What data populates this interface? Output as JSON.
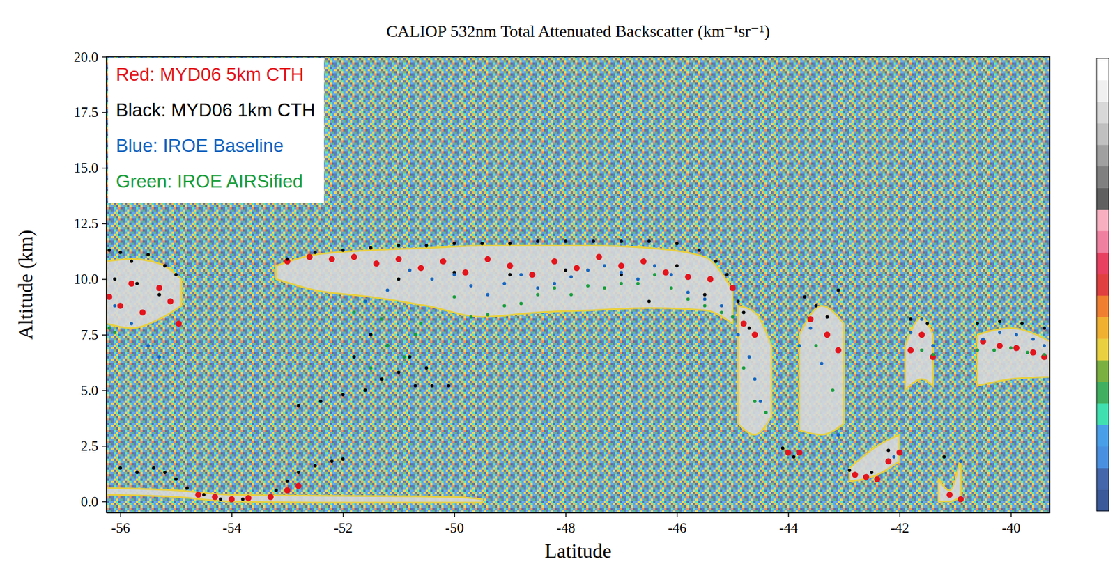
{
  "chart_data": {
    "type": "scatter",
    "title": "CALIOP 532nm Total Attenuated Backscatter (km⁻¹sr⁻¹)",
    "x_label": "Latitude",
    "y_label": "Altitude (km)",
    "xlim": [
      -56.25,
      -39.3
    ],
    "xticks": [
      -56,
      -54,
      -52,
      -50,
      -48,
      -46,
      -44,
      -42,
      -40
    ],
    "ylim": [
      -0.5,
      20
    ],
    "yticks": [
      {
        "value": 0,
        "label": "0.0"
      },
      2.5,
      {
        "value": 5,
        "label": "5.0"
      },
      7.5,
      {
        "value": 10,
        "label": "10.0"
      },
      12.5,
      {
        "value": 15,
        "label": "15.0"
      },
      17.5,
      {
        "value": 20,
        "label": "20.0"
      }
    ],
    "grid": false,
    "legend": "upper left",
    "series": [
      {
        "name": "Red: MYD06 5km CTH",
        "color": "#e3141c",
        "marker": "circle",
        "x": [
          -56.2,
          -56.0,
          -55.8,
          -55.6,
          -55.3,
          -55.1,
          -54.95,
          -54.6,
          -54.3,
          -54.0,
          -53.7,
          -53.3,
          -53.0,
          -52.8,
          -53.0,
          -52.6,
          -52.2,
          -51.8,
          -51.4,
          -51.0,
          -50.6,
          -50.2,
          -49.8,
          -49.4,
          -49.0,
          -48.6,
          -48.2,
          -47.8,
          -47.4,
          -47.0,
          -46.6,
          -46.2,
          -45.8,
          -45.4,
          -45.0,
          -44.8,
          -44.6,
          -43.6,
          -43.3,
          -43.1,
          -44.0,
          -43.8,
          -42.8,
          -42.6,
          -42.4,
          -42.2,
          -42.0,
          -41.8,
          -41.6,
          -41.4,
          -41.1,
          -40.9,
          -40.5,
          -40.2,
          -39.9,
          -39.6,
          -39.4
        ],
        "values": [
          9.2,
          8.8,
          9.8,
          8.5,
          9.6,
          9.0,
          8.0,
          0.3,
          0.2,
          0.1,
          0.15,
          0.2,
          0.5,
          0.7,
          10.8,
          11.0,
          10.9,
          11.0,
          10.7,
          10.9,
          10.5,
          10.8,
          10.3,
          10.9,
          10.6,
          10.2,
          10.8,
          10.5,
          11.0,
          10.6,
          10.8,
          10.3,
          10.1,
          10.0,
          9.6,
          8.0,
          7.5,
          8.2,
          7.5,
          6.8,
          2.2,
          2.2,
          1.2,
          1.1,
          1.0,
          1.8,
          2.2,
          6.8,
          7.5,
          6.5,
          0.3,
          0.1,
          7.2,
          7.0,
          6.9,
          6.7,
          6.5
        ]
      },
      {
        "name": "Black: MYD06 1km CTH",
        "color": "#000000",
        "marker": "dot",
        "x": [
          -56.2,
          -56.0,
          -55.8,
          -55.5,
          -55.2,
          -55.0,
          -56.1,
          -55.7,
          -55.3,
          -56.0,
          -55.7,
          -55.4,
          -55.2,
          -55.0,
          -54.8,
          -54.5,
          -54.2,
          -53.8,
          -53.2,
          -53.0,
          -52.8,
          -52.5,
          -52.2,
          -52.0,
          -52.8,
          -52.4,
          -52.0,
          -51.6,
          -51.3,
          -51.0,
          -50.7,
          -50.4,
          -50.1,
          -51.5,
          -51.2,
          -50.8,
          -51.8,
          -50.5,
          -53.0,
          -52.5,
          -52.0,
          -51.5,
          -51.0,
          -50.5,
          -50.0,
          -49.5,
          -49.0,
          -48.5,
          -48.0,
          -47.5,
          -47.0,
          -46.5,
          -46.0,
          -45.6,
          -45.3,
          -45.1,
          -48.0,
          -47.0,
          -46.0,
          -49.0,
          -50.0,
          -51.0,
          -46.5,
          -45.5,
          -44.9,
          -44.8,
          -44.7,
          -43.7,
          -43.5,
          -43.3,
          -43.1,
          -44.1,
          -43.9,
          -42.9,
          -42.5,
          -42.2,
          -41.8,
          -41.5,
          -41.2,
          -40.6,
          -40.2,
          -39.8,
          -39.4
        ],
        "values": [
          11.3,
          11.2,
          10.8,
          11.1,
          10.6,
          10.2,
          10.0,
          9.8,
          9.3,
          1.5,
          1.3,
          1.5,
          1.3,
          1.0,
          0.6,
          0.3,
          0.1,
          0.1,
          0.5,
          0.9,
          1.3,
          1.6,
          1.8,
          1.9,
          4.3,
          4.5,
          4.8,
          5.0,
          5.5,
          5.8,
          5.2,
          5.2,
          5.2,
          7.5,
          7.0,
          6.5,
          6.5,
          6.0,
          10.9,
          11.2,
          11.3,
          11.4,
          11.5,
          11.5,
          11.6,
          11.6,
          11.6,
          11.7,
          11.7,
          11.7,
          11.7,
          11.7,
          11.6,
          11.3,
          10.8,
          10.2,
          10.4,
          10.2,
          10.6,
          10.2,
          10.3,
          10.0,
          9.0,
          9.3,
          9.0,
          8.5,
          7.8,
          9.2,
          8.8,
          8.3,
          9.5,
          2.4,
          2.0,
          1.4,
          1.3,
          2.3,
          8.2,
          8.0,
          2.0,
          8.0,
          8.1,
          8.0,
          7.8
        ]
      },
      {
        "name": "Blue: IROE Baseline",
        "color": "#1565c0",
        "marker": "dot",
        "x": [
          -56.1,
          -55.8,
          -55.5,
          -55.3,
          -51.6,
          -51.2,
          -50.8,
          -50.4,
          -50.0,
          -49.7,
          -49.4,
          -49.1,
          -48.8,
          -48.5,
          -48.2,
          -47.9,
          -47.6,
          -47.3,
          -47.0,
          -46.7,
          -46.4,
          -46.1,
          -45.8,
          -45.5,
          -45.2,
          -44.9,
          -44.7,
          -44.6,
          -44.5,
          -43.8,
          -43.6,
          -43.4,
          -43.1,
          -42.1,
          -41.8,
          -41.6,
          -41.4,
          -40.9,
          -40.5,
          -40.2,
          -39.9,
          -39.6,
          -39.4
        ],
        "values": [
          8.8,
          8.0,
          7.0,
          6.5,
          9.0,
          9.5,
          10.4,
          10.0,
          10.2,
          9.7,
          9.3,
          9.8,
          10.2,
          9.6,
          9.8,
          10.1,
          10.4,
          10.6,
          10.3,
          10.0,
          10.6,
          10.2,
          9.4,
          9.1,
          8.8,
          7.5,
          6.5,
          5.5,
          4.5,
          7.0,
          7.8,
          6.2,
          3.0,
          2.0,
          7.6,
          8.2,
          7.0,
          1.8,
          7.3,
          7.6,
          7.5,
          7.3,
          7.0
        ]
      },
      {
        "name": "Green: IROE AIRSified",
        "color": "#1a9e3c",
        "marker": "dot",
        "x": [
          -56.2,
          -56.1,
          -51.8,
          -51.3,
          -50.6,
          -50.0,
          -49.7,
          -49.4,
          -49.1,
          -48.8,
          -48.5,
          -48.2,
          -47.9,
          -47.6,
          -47.3,
          -47.0,
          -46.7,
          -46.4,
          -46.1,
          -45.8,
          -45.5,
          -45.2,
          -45.0,
          -51.2,
          -50.9,
          -51.5,
          -50.7,
          -44.8,
          -44.6,
          -44.4,
          -43.5,
          -43.2,
          -41.6,
          -41.4,
          -40.6,
          -40.3,
          -40.0,
          -39.7,
          -39.4
        ],
        "values": [
          7.8,
          7.6,
          8.5,
          8.2,
          8.0,
          9.2,
          8.3,
          8.4,
          8.8,
          8.9,
          9.3,
          9.6,
          9.3,
          9.7,
          9.6,
          9.8,
          9.8,
          10.2,
          9.6,
          9.1,
          8.8,
          8.5,
          8.3,
          7.0,
          6.5,
          6.0,
          7.5,
          6.0,
          4.5,
          4.0,
          7.0,
          5.0,
          6.8,
          6.6,
          6.8,
          6.8,
          6.9,
          6.7,
          6.6
        ]
      }
    ],
    "backscatter_features": [
      {
        "lat": [
          -56.25,
          -55.8,
          -55.3,
          -54.9
        ],
        "top": [
          10.8,
          10.9,
          10.7,
          10.0
        ],
        "base": [
          8.0,
          7.8,
          8.2,
          8.8
        ]
      },
      {
        "lat": [
          -53.2,
          -52.5,
          -51.5,
          -50.5,
          -49.5,
          -48.5,
          -47.5,
          -46.5,
          -45.5,
          -45.0
        ],
        "top": [
          10.6,
          11.1,
          11.3,
          11.4,
          11.5,
          11.5,
          11.5,
          11.4,
          11.0,
          9.5
        ],
        "base": [
          10.0,
          9.5,
          9.2,
          8.8,
          8.3,
          8.5,
          8.6,
          8.7,
          8.6,
          8.0
        ]
      },
      {
        "lat": [
          -44.9,
          -44.6,
          -44.3
        ],
        "top": [
          8.8,
          8.5,
          7.0
        ],
        "base": [
          3.5,
          3.0,
          3.8
        ]
      },
      {
        "lat": [
          -43.8,
          -43.4,
          -43.0
        ],
        "top": [
          7.5,
          8.8,
          8.0
        ],
        "base": [
          3.2,
          3.0,
          3.5
        ]
      },
      {
        "lat": [
          -42.9,
          -42.4,
          -42.0
        ],
        "top": [
          1.5,
          2.5,
          3.0
        ],
        "base": [
          0.9,
          1.2,
          1.8
        ]
      },
      {
        "lat": [
          -41.9,
          -41.6,
          -41.4
        ],
        "top": [
          7.0,
          8.3,
          7.5
        ],
        "base": [
          5.0,
          5.5,
          5.2
        ]
      },
      {
        "lat": [
          -41.3,
          -41.1,
          -40.9
        ],
        "top": [
          1.0,
          0.5,
          2.0
        ],
        "base": [
          0.0,
          0.0,
          0.2
        ]
      },
      {
        "lat": [
          -40.6,
          -40.0,
          -39.3
        ],
        "top": [
          7.5,
          7.8,
          7.2
        ],
        "base": [
          5.2,
          5.5,
          5.6
        ]
      },
      {
        "lat": [
          -56.25,
          -55.0,
          -54.0,
          -52.0,
          -50.0,
          -49.5
        ],
        "top": [
          0.6,
          0.5,
          0.3,
          0.25,
          0.2,
          0.1
        ],
        "base": [
          0.3,
          0.2,
          0.0,
          -0.05,
          -0.05,
          -0.05
        ]
      }
    ],
    "colorbar": {
      "colors": [
        "#3a5a9a",
        "#4466aa",
        "#4a90e0",
        "#4aa0e8",
        "#40e0b0",
        "#40b060",
        "#7ab040",
        "#e8d040",
        "#f0b030",
        "#f08030",
        "#e04040",
        "#e84060",
        "#f080a0",
        "#f8b0c0",
        "#606060",
        "#808080",
        "#a0a0a0",
        "#c0c0c0",
        "#d8d8d8",
        "#f0f0f0",
        "#ffffff"
      ]
    }
  }
}
